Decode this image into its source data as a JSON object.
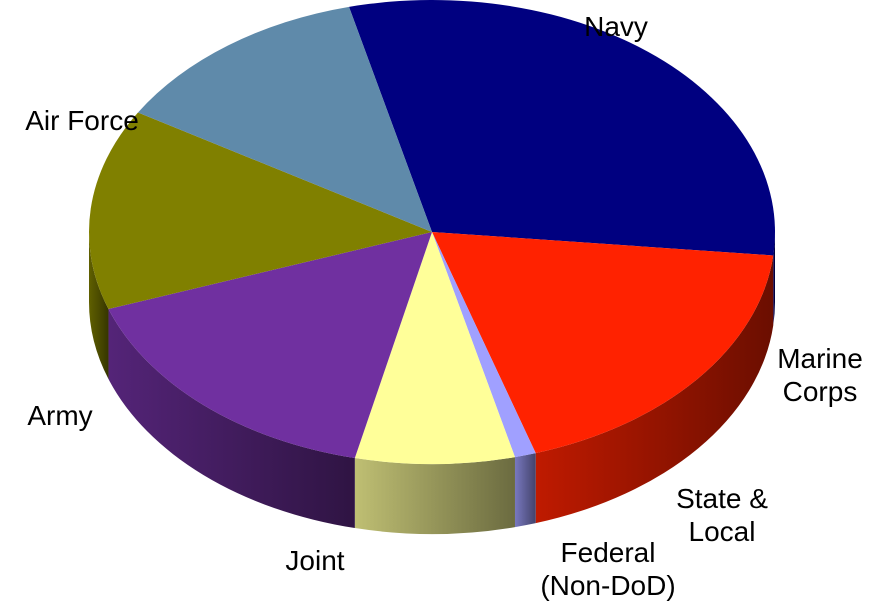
{
  "chart_data": {
    "type": "pie",
    "style": "3d",
    "title": "",
    "legend": "none",
    "slices": [
      {
        "label": "Navy",
        "label_lines": [
          "Navy"
        ],
        "value": 30.5,
        "color": "#000080"
      },
      {
        "label": "Marine Corps",
        "label_lines": [
          "Marine",
          "Corps"
        ],
        "value": 18.5,
        "color": "#ff2200"
      },
      {
        "label": "State & Local",
        "label_lines": [
          "State &",
          "Local"
        ],
        "value": 1.0,
        "color": "#a0a0ff"
      },
      {
        "label": "Federal (Non-DoD)",
        "label_lines": [
          "Federal",
          "(Non-DoD)"
        ],
        "value": 7.5,
        "color": "#ffff99"
      },
      {
        "label": "Joint",
        "label_lines": [
          "Joint"
        ],
        "value": 16.0,
        "color": "#7030a0"
      },
      {
        "label": "Army",
        "label_lines": [
          "Army"
        ],
        "value": 14.0,
        "color": "#808000"
      },
      {
        "label": "Air Force",
        "label_lines": [
          "Air Force"
        ],
        "value": 12.5,
        "color": "#5f8aaa"
      }
    ]
  }
}
